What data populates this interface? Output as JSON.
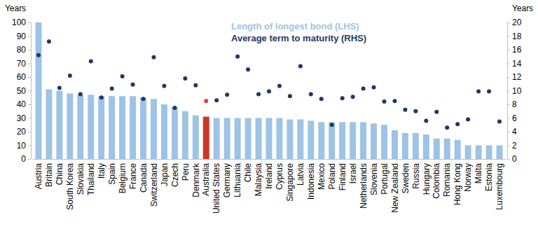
{
  "chart_data": {
    "type": "bar",
    "categories": [
      "Austria",
      "Britain",
      "China",
      "South Korea",
      "Slovakia",
      "Thailand",
      "Italy",
      "Spain",
      "Belgium",
      "France",
      "Canada",
      "Switzerland",
      "Japan",
      "Czech",
      "Peru",
      "Denmark",
      "Australia",
      "United States",
      "Germany",
      "Lithuania",
      "Chile",
      "Malaysia",
      "Ireland",
      "Cyprus",
      "Singapore",
      "Latvia",
      "Indonesia",
      "Mexico",
      "Poland",
      "Finland",
      "Israel",
      "Netherlands",
      "Slovenia",
      "Portugal",
      "New Zealand",
      "Sweden",
      "Russia",
      "Hungary",
      "Colombia",
      "Romania",
      "Hong Kong",
      "Norway",
      "Malta",
      "Estonia",
      "Luxembourg"
    ],
    "series": [
      {
        "name": "Length of longest bond (LHS)",
        "type": "bar",
        "color": "#9dc3e6",
        "colors": [
          "#9dc3e6",
          "#9dc3e6",
          "#9dc3e6",
          "#9dc3e6",
          "#9dc3e6",
          "#9dc3e6",
          "#9dc3e6",
          "#9dc3e6",
          "#9dc3e6",
          "#9dc3e6",
          "#9dc3e6",
          "#9dc3e6",
          "#9dc3e6",
          "#9dc3e6",
          "#9dc3e6",
          "#9dc3e6",
          "#d0352b",
          "#9dc3e6",
          "#9dc3e6",
          "#9dc3e6",
          "#9dc3e6",
          "#9dc3e6",
          "#9dc3e6",
          "#9dc3e6",
          "#9dc3e6",
          "#9dc3e6",
          "#9dc3e6",
          "#9dc3e6",
          "#9dc3e6",
          "#9dc3e6",
          "#9dc3e6",
          "#9dc3e6",
          "#9dc3e6",
          "#9dc3e6",
          "#9dc3e6",
          "#9dc3e6",
          "#9dc3e6",
          "#9dc3e6",
          "#9dc3e6",
          "#9dc3e6",
          "#9dc3e6",
          "#9dc3e6",
          "#9dc3e6",
          "#9dc3e6",
          "#9dc3e6"
        ],
        "values": [
          100,
          51,
          50,
          48,
          47,
          47,
          46,
          46,
          46,
          46,
          45,
          44,
          40,
          38,
          35,
          32,
          31,
          30,
          30,
          30,
          30,
          30,
          30,
          30,
          29,
          29,
          28,
          27,
          27,
          27,
          27,
          27,
          26,
          25,
          21,
          19,
          19,
          18,
          15,
          15,
          14,
          10,
          10,
          10,
          10
        ]
      },
      {
        "name": "Average term to maturity (RHS)",
        "type": "scatter",
        "axis": "y2",
        "marker": "circle",
        "color": "#1f3864",
        "colors": [
          "#1f3864",
          "#1f3864",
          "#1f3864",
          "#1f3864",
          "#1f3864",
          "#1f3864",
          "#1f3864",
          "#1f3864",
          "#1f3864",
          "#1f3864",
          "#1f3864",
          "#1f3864",
          "#1f3864",
          "#1f3864",
          "#1f3864",
          "#1f3864",
          "#e0402f",
          "#1f3864",
          "#1f3864",
          "#1f3864",
          "#1f3864",
          "#1f3864",
          "#1f3864",
          "#1f3864",
          "#1f3864",
          "#1f3864",
          "#1f3864",
          "#1f3864",
          "#1f3864",
          "#1f3864",
          "#1f3864",
          "#1f3864",
          "#1f3864",
          "#1f3864",
          "#1f3864",
          "#1f3864",
          "#1f3864",
          "#1f3864",
          "#1f3864",
          "#1f3864",
          "#1f3864",
          "#1f3864",
          "#1f3864",
          "#1f3864",
          "#1f3864"
        ],
        "values": [
          15.2,
          17.2,
          10.4,
          12.2,
          9.5,
          14.3,
          9.0,
          10.3,
          12.1,
          10.9,
          8.8,
          14.9,
          10.7,
          7.5,
          11.8,
          10.8,
          8.5,
          8.6,
          9.4,
          15.0,
          13.1,
          9.5,
          9.9,
          10.7,
          9.2,
          13.6,
          9.5,
          8.8,
          5.0,
          8.9,
          9.1,
          10.3,
          10.5,
          8.4,
          8.5,
          7.2,
          7.0,
          5.6,
          6.9,
          4.6,
          5.1,
          5.8,
          9.9,
          9.9,
          5.5
        ]
      }
    ],
    "y_label": "Years",
    "y2_label": "Years",
    "ylim": [
      0,
      100
    ],
    "yticks": [
      0,
      10,
      20,
      30,
      40,
      50,
      60,
      70,
      80,
      90,
      100
    ],
    "y2lim": [
      0,
      20
    ],
    "y2ticks": [
      0,
      2,
      4,
      6,
      8,
      10,
      12,
      14,
      16,
      18,
      20
    ],
    "legend": "top"
  }
}
